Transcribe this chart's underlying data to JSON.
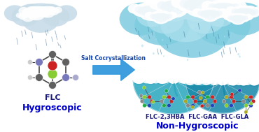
{
  "left_label_top": "FLC",
  "left_label_bottom": "Hygroscopic",
  "right_label_top": "FLC-2,3HBA  FLC-GAA  FLC-GLA",
  "right_label_bottom": "Non-Hygroscopic",
  "arrow_label": "Salt Cocrystallization",
  "bg_color": "#ffffff",
  "cloud_fill_left": "#c8dce8",
  "cloud_fill_right": "#a8d8ec",
  "teal_blob": "#7ecce0",
  "umbrella_color": "#2fa8c0",
  "umbrella_dark": "#1a8aaa",
  "arrow_color": "#3399dd",
  "label_color_top": "#1a1a80",
  "label_color_bottom": "#0000cc",
  "arrow_text_color": "#1144aa",
  "figsize": [
    3.7,
    1.89
  ],
  "dpi": 100
}
